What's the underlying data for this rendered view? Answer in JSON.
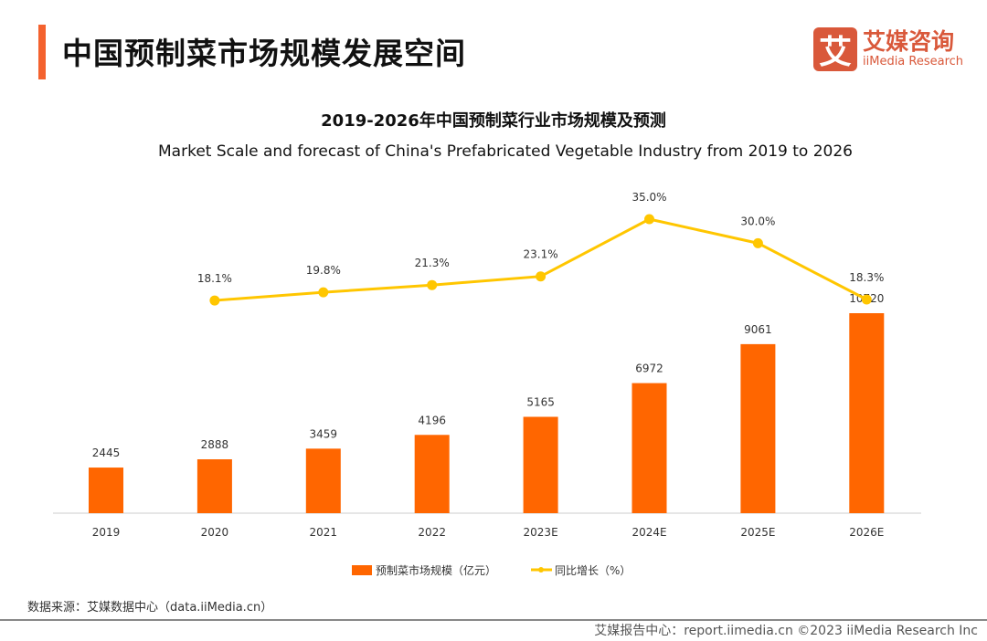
{
  "header": {
    "title": "中国预制菜市场规模发展空间"
  },
  "logo": {
    "mark": "艾",
    "name_cn": "艾媒咨询",
    "name_en": "iiMedia Research"
  },
  "chart_data": {
    "type": "bar+line",
    "title": "2019-2026年中国预制菜行业市场规模及预测",
    "subtitle": "Market Scale and forecast of China's Prefabricated Vegetable Industry from 2019 to 2026",
    "categories": [
      "2019",
      "2020",
      "2021",
      "2022",
      "2023E",
      "2024E",
      "2025E",
      "2026E"
    ],
    "series": [
      {
        "name": "预制菜市场规模（亿元）",
        "type": "bar",
        "color": "#ff6600",
        "values": [
          2445,
          2888,
          3459,
          4196,
          5165,
          6972,
          9061,
          10720
        ],
        "labels": [
          "2445",
          "2888",
          "3459",
          "4196",
          "5165",
          "6972",
          "9061",
          "10720"
        ]
      },
      {
        "name": "同比增长（%）",
        "type": "line",
        "color": "#ffc600",
        "values": [
          null,
          18.1,
          19.8,
          21.3,
          23.1,
          35.0,
          30.0,
          18.3
        ],
        "labels": [
          "",
          "18.1%",
          "19.8%",
          "21.3%",
          "23.1%",
          "35.0%",
          "30.0%",
          "18.3%"
        ]
      }
    ],
    "legend": "bottom",
    "grid": false
  },
  "source": "数据来源：艾媒数据中心（data.iiMedia.cn）",
  "footer": "艾媒报告中心：report.iimedia.cn   ©2023  iiMedia Research  Inc"
}
